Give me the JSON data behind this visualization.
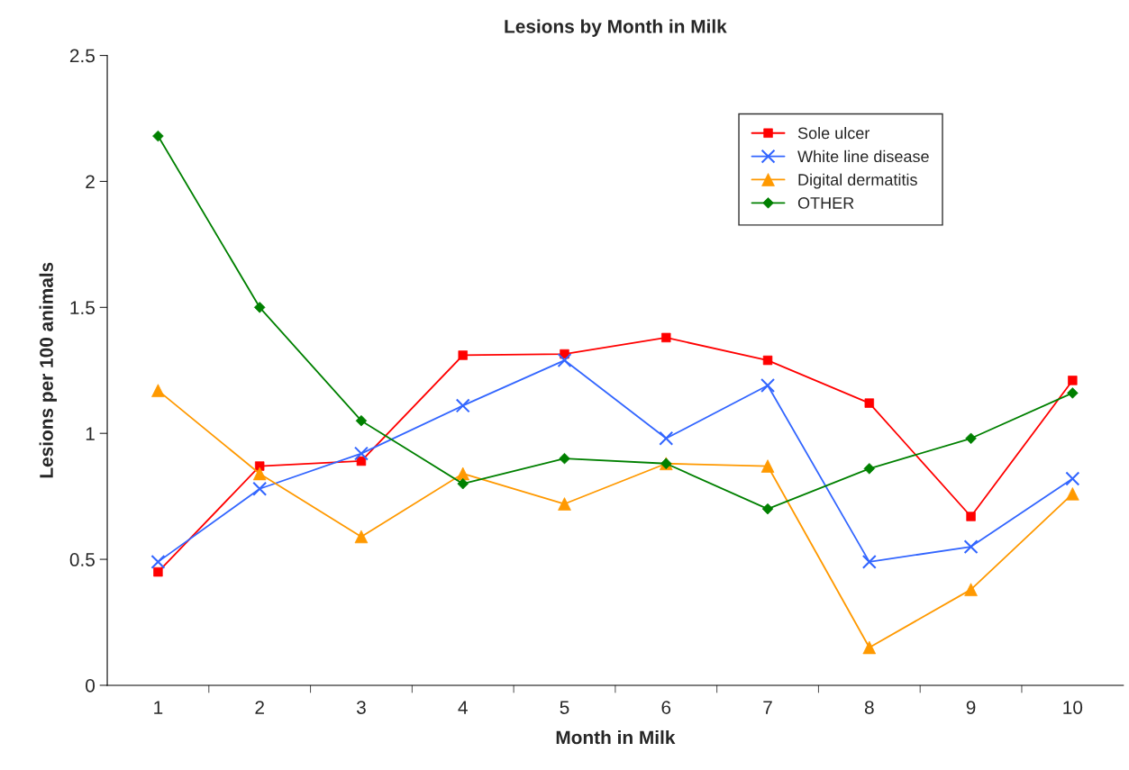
{
  "chart_data": {
    "type": "line",
    "title": "Lesions by Month in Milk",
    "xlabel": "Month in Milk",
    "ylabel": "Lesions per 100 animals",
    "categories": [
      "1",
      "2",
      "3",
      "4",
      "5",
      "6",
      "7",
      "8",
      "9",
      "10"
    ],
    "series": [
      {
        "name": "Sole ulcer",
        "color": "#ff0000",
        "marker": "square",
        "values": [
          0.45,
          0.87,
          0.89,
          1.31,
          1.315,
          1.38,
          1.29,
          1.12,
          0.67,
          1.21
        ]
      },
      {
        "name": "White line disease",
        "color": "#3366ff",
        "marker": "cross",
        "values": [
          0.49,
          0.78,
          0.92,
          1.11,
          1.29,
          0.98,
          1.19,
          0.49,
          0.55,
          0.82
        ]
      },
      {
        "name": "Digital dermatitis",
        "color": "#ff9900",
        "marker": "triangle",
        "values": [
          1.17,
          0.84,
          0.59,
          0.84,
          0.72,
          0.88,
          0.87,
          0.15,
          0.38,
          0.76
        ]
      },
      {
        "name": "OTHER",
        "color": "#008000",
        "marker": "diamond",
        "values": [
          2.18,
          1.5,
          1.05,
          0.8,
          0.9,
          0.88,
          0.7,
          0.86,
          0.98,
          1.16
        ]
      }
    ],
    "ylim": [
      0,
      2.5
    ],
    "yticks": [
      0,
      0.5,
      1,
      1.5,
      2,
      2.5
    ],
    "grid": false,
    "legend": "top right",
    "line_style": "solid"
  }
}
